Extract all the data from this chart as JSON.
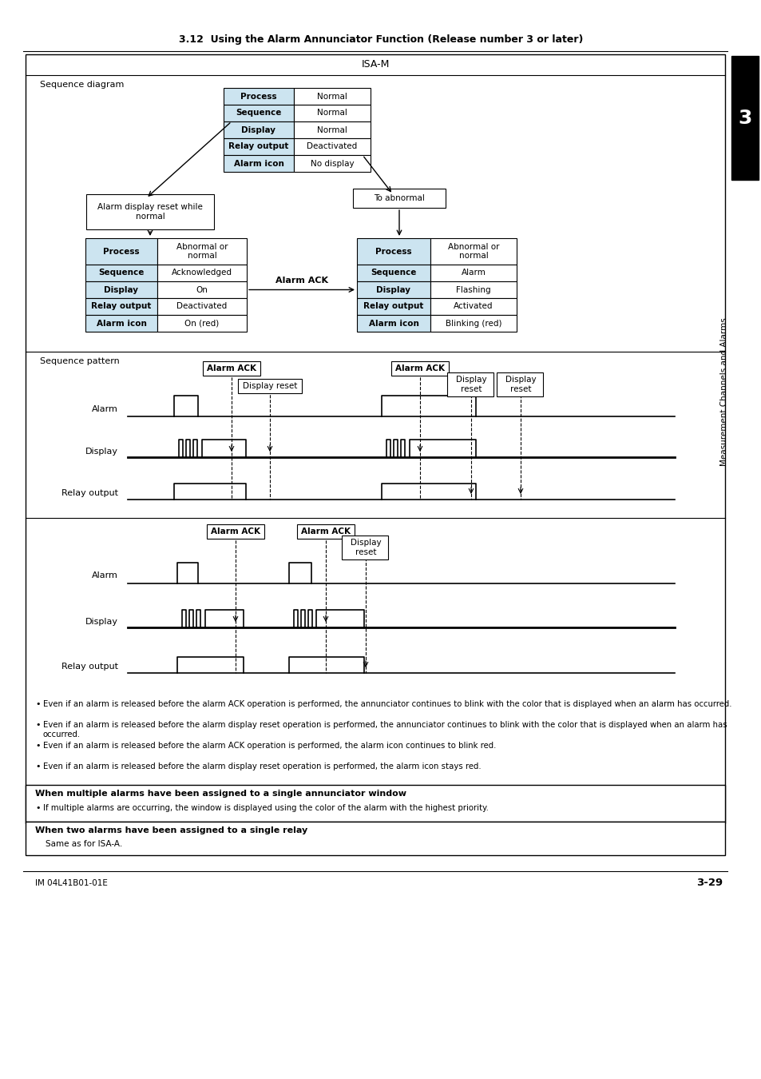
{
  "page_title": "3.12  Using the Alarm Annunciator Function (Release number 3 or later)",
  "sidebar_text": "Measurement Channels and Alarms",
  "sidebar_num": "3",
  "footer_left": "IM 04L41B01-01E",
  "footer_right": "3-29",
  "main_box_title": "ISA-M",
  "seq_diag_label": "Sequence diagram",
  "seq_pattern_label": "Sequence pattern",
  "light_blue": "#cce4f0",
  "box_border": "#000000",
  "bg_white": "#ffffff",
  "normal_state_rows": [
    [
      "Process",
      "Normal"
    ],
    [
      "Sequence",
      "Normal"
    ],
    [
      "Display",
      "Normal"
    ],
    [
      "Relay output",
      "Deactivated"
    ],
    [
      "Alarm icon",
      "No display"
    ]
  ],
  "abnormal_state_rows": [
    [
      "Process",
      "Abnormal or\nnormal"
    ],
    [
      "Sequence",
      "Alarm"
    ],
    [
      "Display",
      "Flashing"
    ],
    [
      "Relay output",
      "Activated"
    ],
    [
      "Alarm icon",
      "Blinking (red)"
    ]
  ],
  "ack_state_rows": [
    [
      "Process",
      "Abnormal or\nnormal"
    ],
    [
      "Sequence",
      "Acknowledged"
    ],
    [
      "Display",
      "On"
    ],
    [
      "Relay output",
      "Deactivated"
    ],
    [
      "Alarm icon",
      "On (red)"
    ]
  ],
  "reset_box_label": "Alarm display reset while\nnormal",
  "to_abnormal_label": "To abnormal",
  "alarm_ack_label": "Alarm ACK",
  "bullet_points": [
    "Even if an alarm is released before the alarm ACK operation is performed, the annunciator continues to blink with the color that is displayed when an alarm has occurred.",
    "Even if an alarm is released before the alarm display reset operation is performed, the annunciator continues to blink with the color that is displayed when an alarm has occurred.",
    "Even if an alarm is released before the alarm ACK operation is performed, the alarm icon continues to blink red.",
    "Even if an alarm is released before the alarm display reset operation is performed, the alarm icon stays red."
  ],
  "section1_title": "When multiple alarms have been assigned to a single annunciator window",
  "section1_bullet": "If multiple alarms are occurring, the window is displayed using the color of the alarm with the highest priority.",
  "section2_title": "When two alarms have been assigned to a single relay",
  "section2_text": "Same as for ISA-A."
}
